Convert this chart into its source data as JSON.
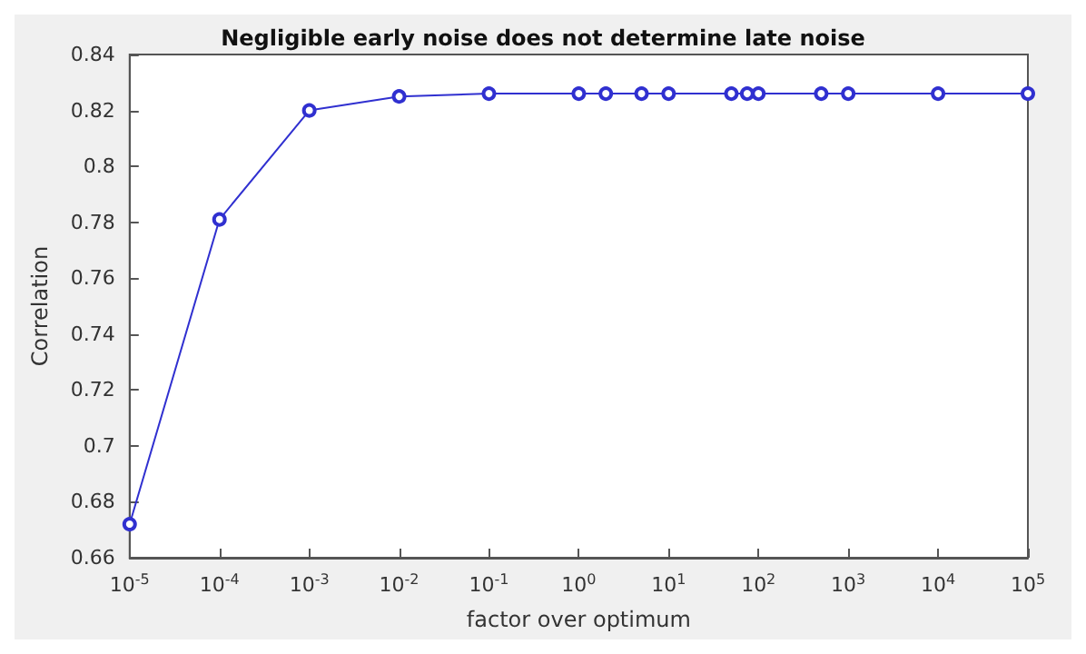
{
  "chart_data": {
    "type": "line",
    "title": "Negligible early noise does not determine late noise",
    "xlabel": "factor over optimum",
    "ylabel": "Correlation",
    "x": [
      1e-05,
      0.0001,
      0.001,
      0.01,
      0.1,
      1,
      2,
      5,
      10,
      50,
      75,
      100,
      500,
      1000,
      10000,
      100000
    ],
    "series": [
      {
        "color": "#3030d0",
        "values": [
          0.672,
          0.781,
          0.82,
          0.825,
          0.826,
          0.826,
          0.826,
          0.826,
          0.826,
          0.826,
          0.826,
          0.826,
          0.826,
          0.826,
          0.826,
          0.826
        ]
      }
    ],
    "log": "x",
    "xlim": [
      1e-05,
      100000
    ],
    "xticks": [
      {
        "value": 1e-05,
        "label": "10$^{-5}$"
      },
      {
        "value": 0.0001,
        "label": "10$^{-4}$"
      },
      {
        "value": 0.001,
        "label": "10$^{-3}$"
      },
      {
        "value": 0.01,
        "label": "10$^{-2}$"
      },
      {
        "value": 0.1,
        "label": "10$^{-1}$"
      },
      {
        "value": 1,
        "label": "10$^{0}$"
      },
      {
        "value": 10,
        "label": "10$^{1}$"
      },
      {
        "value": 100,
        "label": "10$^{2}$"
      },
      {
        "value": 1000,
        "label": "10$^{3}$"
      },
      {
        "value": 10000,
        "label": "10$^{4}$"
      },
      {
        "value": 100000,
        "label": "10$^{5}$"
      }
    ],
    "ylim": [
      0.66,
      0.84
    ],
    "yticks": [
      0.66,
      0.68,
      0.7,
      0.72,
      0.74,
      0.76,
      0.78,
      0.8,
      0.82,
      0.84
    ],
    "grid": false,
    "marker": "circle",
    "line_style": "solid"
  }
}
